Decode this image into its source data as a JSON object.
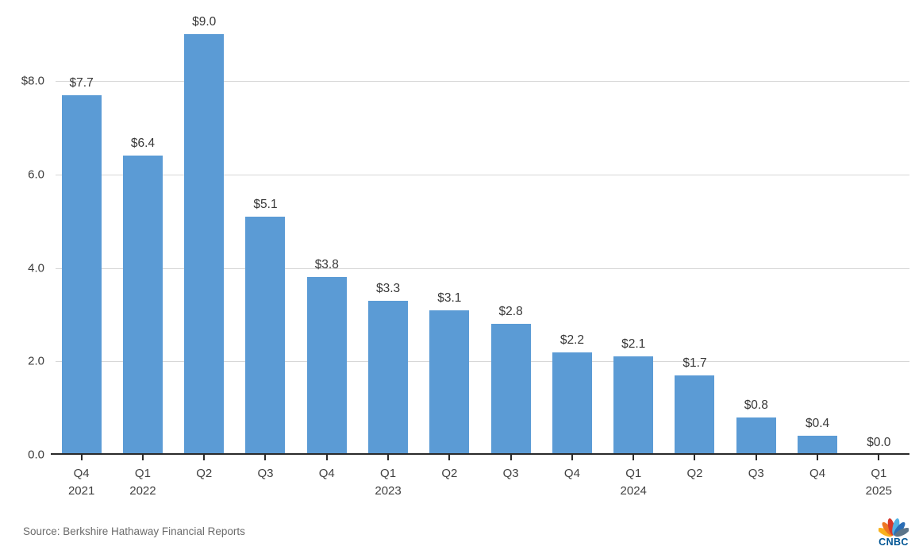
{
  "chart_data": {
    "type": "bar",
    "title": "",
    "categories": [
      "Q4 2021",
      "Q1 2022",
      "Q2 2022",
      "Q3 2022",
      "Q4 2022",
      "Q1 2023",
      "Q2 2023",
      "Q3 2023",
      "Q4 2023",
      "Q1 2024",
      "Q2 2024",
      "Q3 2024",
      "Q4 2024",
      "Q1 2025"
    ],
    "x_ticks": [
      {
        "quarter": "Q4",
        "year": "2021"
      },
      {
        "quarter": "Q1",
        "year": "2022"
      },
      {
        "quarter": "Q2",
        "year": ""
      },
      {
        "quarter": "Q3",
        "year": ""
      },
      {
        "quarter": "Q4",
        "year": ""
      },
      {
        "quarter": "Q1",
        "year": "2023"
      },
      {
        "quarter": "Q2",
        "year": ""
      },
      {
        "quarter": "Q3",
        "year": ""
      },
      {
        "quarter": "Q4",
        "year": ""
      },
      {
        "quarter": "Q1",
        "year": "2024"
      },
      {
        "quarter": "Q2",
        "year": ""
      },
      {
        "quarter": "Q3",
        "year": ""
      },
      {
        "quarter": "Q4",
        "year": ""
      },
      {
        "quarter": "Q1",
        "year": "2025"
      }
    ],
    "values": [
      7.7,
      6.4,
      9.0,
      5.1,
      3.8,
      3.3,
      3.1,
      2.8,
      2.2,
      2.1,
      1.7,
      0.8,
      0.4,
      0.0
    ],
    "bar_labels": [
      "$7.7",
      "$6.4",
      "$9.0",
      "$5.1",
      "$3.8",
      "$3.3",
      "$3.1",
      "$2.8",
      "$2.2",
      "$2.1",
      "$1.7",
      "$0.8",
      "$0.4",
      "$0.0"
    ],
    "y_ticks": [
      {
        "value": 8,
        "label": "$8.0"
      },
      {
        "value": 6,
        "label": "6.0"
      },
      {
        "value": 4,
        "label": "4.0"
      },
      {
        "value": 2,
        "label": "2.0"
      },
      {
        "value": 0,
        "label": "0.0"
      }
    ],
    "ylim": [
      0,
      9.5
    ],
    "grid": true,
    "legend": "none",
    "bar_color": "#5b9bd5"
  },
  "footer": {
    "source": "Source: Berkshire Hathaway Financial Reports",
    "logo_text": "CNBC"
  },
  "brand": {
    "logo_blue": "#005594",
    "peacock_colors": [
      "#f9b21d",
      "#ee7623",
      "#d6382c",
      "#53b2e4",
      "#2a6db5",
      "#5b7489"
    ]
  }
}
